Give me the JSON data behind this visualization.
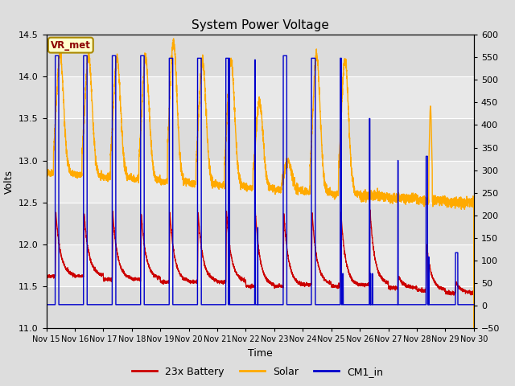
{
  "title": "System Power Voltage",
  "xlabel": "Time",
  "ylabel_left": "Volts",
  "ylim_left": [
    11.0,
    14.5
  ],
  "ylim_right": [
    -50,
    600
  ],
  "yticks_left": [
    11.0,
    11.5,
    12.0,
    12.5,
    13.0,
    13.5,
    14.0,
    14.5
  ],
  "yticks_right": [
    -50,
    0,
    50,
    100,
    150,
    200,
    250,
    300,
    350,
    400,
    450,
    500,
    550,
    600
  ],
  "xtick_labels": [
    "Nov 15",
    "Nov 16",
    "Nov 17",
    "Nov 18",
    "Nov 19",
    "Nov 20",
    "Nov 21",
    "Nov 22",
    "Nov 23",
    "Nov 24",
    "Nov 25",
    "Nov 26",
    "Nov 27",
    "Nov 28",
    "Nov 29",
    "Nov 30"
  ],
  "color_battery": "#cc0000",
  "color_solar": "#ffaa00",
  "color_cm1": "#0000cc",
  "legend_labels": [
    "23x Battery",
    "Solar",
    "CM1_in"
  ],
  "vr_met_label": "VR_met",
  "grid_color": "#ffffff",
  "title_fontsize": 11,
  "axis_fontsize": 9,
  "tick_fontsize": 8,
  "figsize": [
    6.4,
    4.8
  ],
  "dpi": 100
}
